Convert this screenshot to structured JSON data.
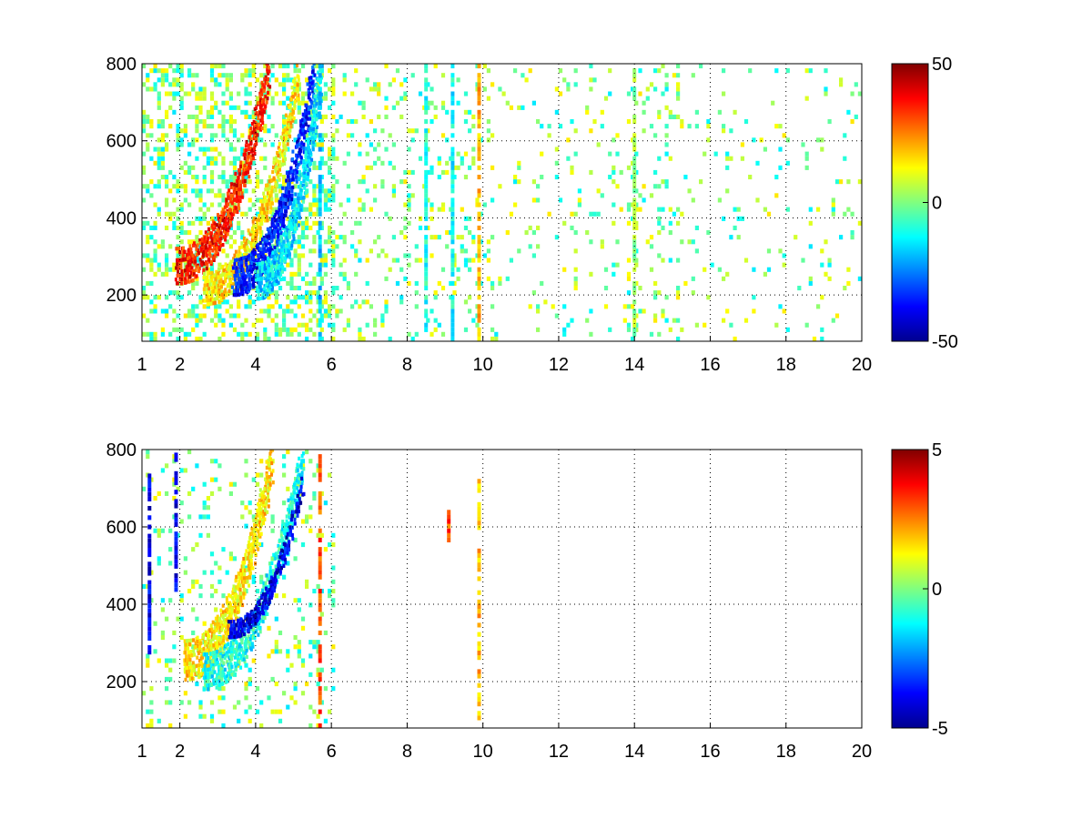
{
  "chart_data": [
    {
      "type": "heatmap",
      "title": "",
      "xlabel": "",
      "ylabel": "",
      "xlim": [
        1,
        20
      ],
      "ylim": [
        80,
        800
      ],
      "xticks": [
        1,
        2,
        4,
        6,
        8,
        10,
        12,
        14,
        16,
        18,
        20
      ],
      "xtick_labels": [
        "1",
        "2",
        "4",
        "6",
        "8",
        "10",
        "12",
        "14",
        "16",
        "18",
        "20"
      ],
      "yticks": [
        200,
        400,
        600,
        800
      ],
      "ytick_labels": [
        "200",
        "400",
        "600",
        "800"
      ],
      "grid": true,
      "colormap": "jet",
      "clim": [
        -50,
        50
      ],
      "colorbar_ticks": [
        -50,
        0,
        50
      ],
      "colorbar_tick_labels": [
        "-50",
        "0",
        "50"
      ],
      "features": [
        {
          "kind": "band",
          "x_start": 1.9,
          "x_end": 4.3,
          "y_start": 270,
          "y_end": 760,
          "y_width": 90,
          "value": 35
        },
        {
          "kind": "band",
          "x_start": 2.6,
          "x_end": 5.1,
          "y_start": 210,
          "y_end": 760,
          "y_width": 80,
          "value": 15
        },
        {
          "kind": "band",
          "x_start": 3.4,
          "x_end": 5.5,
          "y_start": 240,
          "y_end": 760,
          "y_width": 90,
          "value": -35
        },
        {
          "kind": "band",
          "x_start": 4.0,
          "x_end": 5.7,
          "y_start": 230,
          "y_end": 760,
          "y_width": 90,
          "value": -15
        },
        {
          "kind": "column",
          "x": 5.7,
          "y_start": 80,
          "y_end": 800,
          "value": -18
        },
        {
          "kind": "column",
          "x": 8.5,
          "y_start": 80,
          "y_end": 800,
          "value": -10
        },
        {
          "kind": "column",
          "x": 9.2,
          "y_start": 80,
          "y_end": 800,
          "value": -12
        },
        {
          "kind": "column",
          "x": 9.9,
          "y_start": 80,
          "y_end": 800,
          "value": 20
        },
        {
          "kind": "column",
          "x": 14.0,
          "y_start": 80,
          "y_end": 800,
          "value": 3
        }
      ],
      "scatter_density": [
        {
          "x_start": 1.0,
          "x_end": 6.0,
          "density": 0.35
        },
        {
          "x_start": 6.0,
          "x_end": 10.2,
          "density": 0.12
        },
        {
          "x_start": 10.2,
          "x_end": 13.8,
          "density": 0.06
        },
        {
          "x_start": 13.8,
          "x_end": 15.2,
          "density": 0.14
        },
        {
          "x_start": 15.2,
          "x_end": 20.0,
          "density": 0.05
        }
      ]
    },
    {
      "type": "heatmap",
      "title": "",
      "xlabel": "",
      "ylabel": "",
      "xlim": [
        1,
        20
      ],
      "ylim": [
        80,
        800
      ],
      "xticks": [
        1,
        2,
        4,
        6,
        8,
        10,
        12,
        14,
        16,
        18,
        20
      ],
      "xtick_labels": [
        "1",
        "2",
        "4",
        "6",
        "8",
        "10",
        "12",
        "14",
        "16",
        "18",
        "20"
      ],
      "yticks": [
        200,
        400,
        600,
        800
      ],
      "ytick_labels": [
        "200",
        "400",
        "600",
        "800"
      ],
      "grid": true,
      "colormap": "jet",
      "clim": [
        -5,
        5
      ],
      "colorbar_ticks": [
        -5,
        0,
        5
      ],
      "colorbar_tick_labels": [
        "-5",
        "0",
        "5"
      ],
      "features": [
        {
          "kind": "band",
          "x_start": 2.1,
          "x_end": 4.4,
          "y_start": 250,
          "y_end": 760,
          "y_width": 100,
          "value": 1.5
        },
        {
          "kind": "band",
          "x_start": 2.6,
          "x_end": 5.2,
          "y_start": 220,
          "y_end": 760,
          "y_width": 90,
          "value": -1.0
        },
        {
          "kind": "band",
          "x_start": 3.3,
          "x_end": 5.2,
          "y_start": 330,
          "y_end": 700,
          "y_width": 40,
          "value": -4.0
        },
        {
          "kind": "column",
          "x": 5.7,
          "y_start": 80,
          "y_end": 800,
          "value": 3
        },
        {
          "kind": "column",
          "x": 9.1,
          "y_start": 560,
          "y_end": 640,
          "value": 3
        },
        {
          "kind": "column",
          "x": 9.9,
          "y_start": 100,
          "y_end": 720,
          "value": 2
        },
        {
          "kind": "column",
          "x": 1.2,
          "y_start": 270,
          "y_end": 740,
          "value": -4
        },
        {
          "kind": "column",
          "x": 1.9,
          "y_start": 420,
          "y_end": 790,
          "value": -4
        }
      ],
      "scatter_density": [
        {
          "x_start": 1.0,
          "x_end": 6.0,
          "density": 0.12
        },
        {
          "x_start": 6.0,
          "x_end": 20.0,
          "density": 0.0
        }
      ]
    }
  ]
}
